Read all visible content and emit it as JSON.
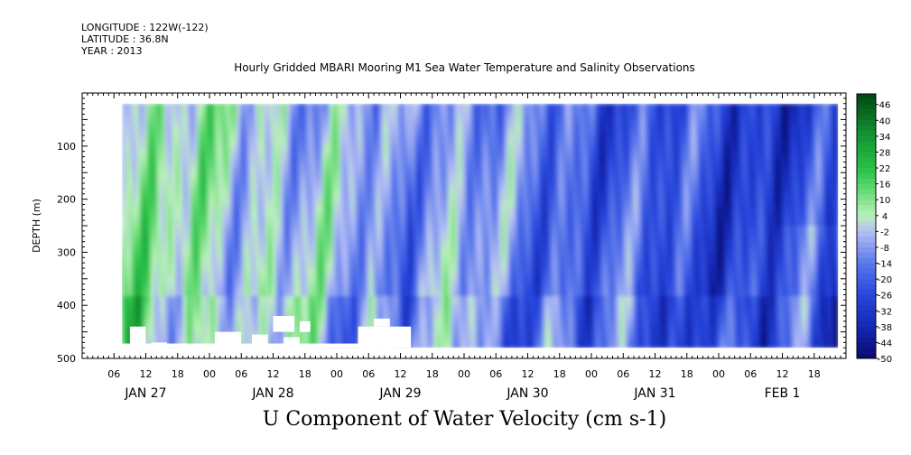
{
  "header": {
    "longitude": "LONGITUDE : 122W(-122)",
    "latitude": "LATITUDE : 36.8N",
    "year": "YEAR : 2013"
  },
  "chart_data": {
    "type": "heatmap",
    "title": "Hourly Gridded MBARI Mooring M1 Sea Water Temperature and Salinity Observations",
    "xlabel": "U Component of Water Velocity (cm s-1)",
    "ylabel": "DEPTH (m)",
    "x_range_hours": [
      0,
      144
    ],
    "day_labels": [
      "JAN 27",
      "JAN 28",
      "JAN 29",
      "JAN 30",
      "JAN 31",
      "FEB  1"
    ],
    "hour_tick_labels": [
      "06",
      "12",
      "18",
      "00"
    ],
    "ylim": [
      500,
      0
    ],
    "y_ticks": [
      100,
      200,
      300,
      400,
      500
    ],
    "colorbar_levels": [
      "46",
      "40",
      "34",
      "28",
      "22",
      "16",
      "10",
      "4",
      "-2",
      "-8",
      "-14",
      "-20",
      "-26",
      "-32",
      "-38",
      "-44",
      "-50"
    ],
    "colorbar_range": [
      -50,
      50
    ],
    "colors": {
      "positive": "#1aa83a",
      "light_positive": "#9ae89a",
      "negative": "#3a50d8",
      "light_negative": "#aab4f0"
    }
  }
}
